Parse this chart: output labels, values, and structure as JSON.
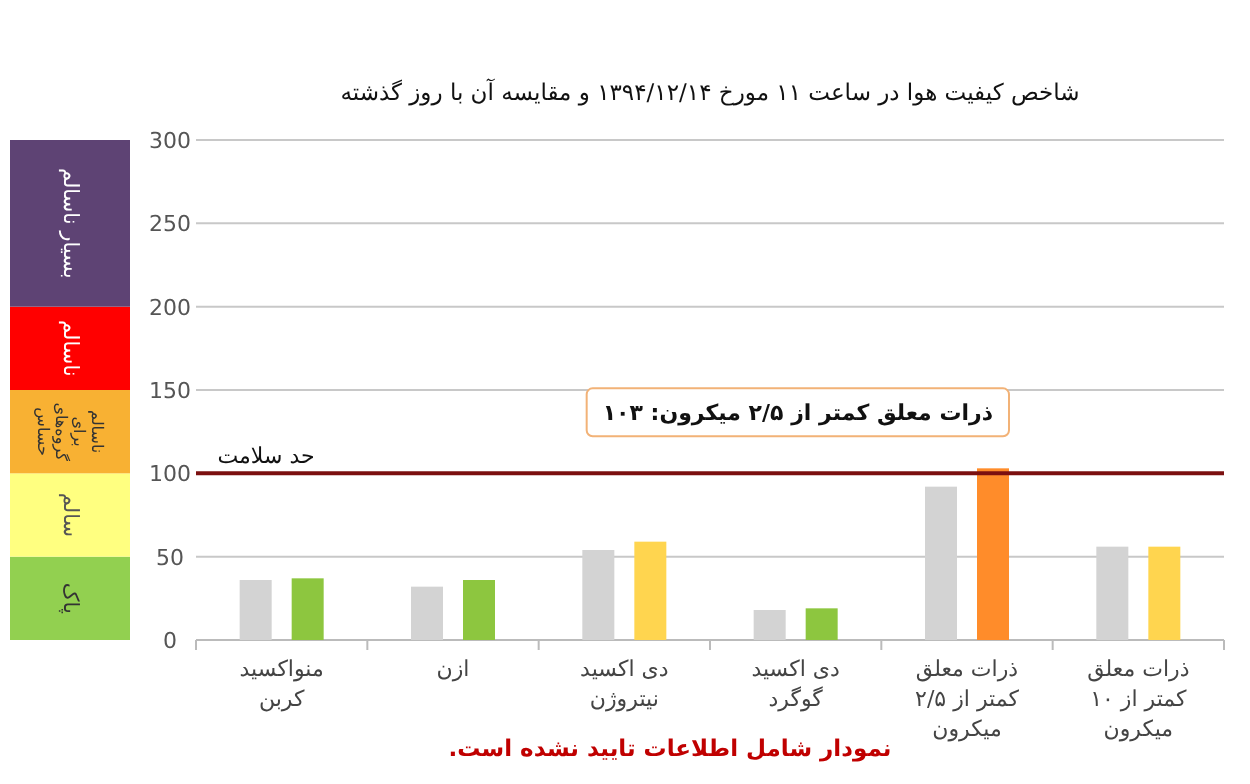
{
  "chart_data": [
    {
      "type": "bar",
      "stacked": true,
      "categories": [
        null
      ],
      "series": [
        {
          "name": "پاک",
          "color": "#92d050",
          "values": [
            50
          ]
        },
        {
          "name": "سالم",
          "color": "#ffff80",
          "values": [
            50
          ]
        },
        {
          "name": "ناسالم برای گروه‌های حساس",
          "color": "#f8b133",
          "values": [
            50
          ]
        },
        {
          "name": "ناسالم",
          "color": "#ff0000",
          "values": [
            50
          ]
        },
        {
          "name": "بسیار ناسالم",
          "color": "#5e4374",
          "values": [
            100
          ]
        }
      ],
      "ylim": [
        0,
        300
      ]
    },
    {
      "type": "bar",
      "title": "شاخص کیفیت هوا در ساعت ۱۱ مورخ ۱۳۹۴/۱۲/۱۴ و مقایسه آن با روز گذشته",
      "categories": [
        "منواکسید کربن",
        "ازن",
        "دی اکسید نیتروژن",
        "دی اکسید گوگرد",
        "ذرات معلق کمتر از ۲/۵ میکرون",
        "ذرات معلق کمتر از ۱۰ میکرون"
      ],
      "series": [
        {
          "color": "#d3d3d3",
          "values": [
            36,
            32,
            54,
            18,
            92,
            56
          ]
        },
        {
          "colors": [
            "#8dc63f",
            "#8dc63f",
            "#ffd54f",
            "#8dc63f",
            "#ff8c2a",
            "#ffd54f"
          ],
          "values": [
            37,
            36,
            59,
            19,
            103,
            56
          ]
        }
      ],
      "ylim": [
        0,
        300
      ],
      "yticks": [
        0,
        50,
        100,
        150,
        200,
        250,
        300
      ],
      "grid": "y",
      "ref_lines": [
        {
          "axis": "y",
          "value": 100,
          "label": "حد سلامت",
          "color": "#7b1010"
        }
      ],
      "annotations": [
        {
          "text": "ذرات معلق کمتر از ۲/۵ میکرون: ۱۰۳",
          "x": "ذرات معلق کمتر از ۲/۵ میکرون",
          "y": 103
        },
        "نمودار شامل اطلاعات تایید نشده است."
      ]
    }
  ]
}
